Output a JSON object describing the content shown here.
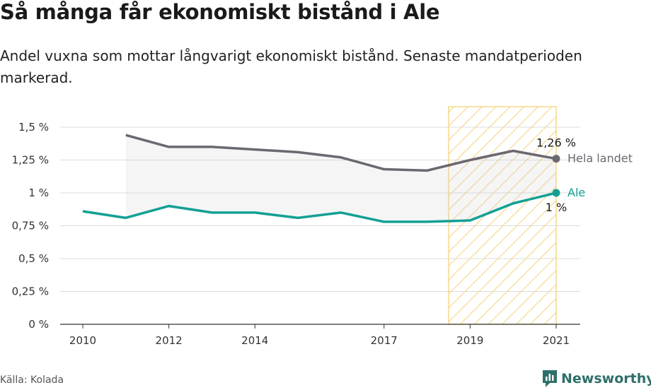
{
  "title": "Så många får ekonomiskt bistånd i Ale",
  "subtitle": "Andel vuxna som mottar långvarigt ekonomiskt bistånd. Senaste mandatperioden markerad.",
  "source": "Källa: Kolada",
  "logo": {
    "name": "Newsworthy",
    "icon": "newsworthy-logo-icon"
  },
  "colors": {
    "hela_landet": "#6b6870",
    "ale": "#13a094",
    "highlight_stroke": "#f3d98c",
    "highlight_hatch": "#f5d27a"
  },
  "chart_data": {
    "type": "line",
    "x_ticks": [
      2010,
      2012,
      2014,
      2017,
      2019,
      2021
    ],
    "y_ticks": [
      0,
      0.25,
      0.5,
      0.75,
      1,
      1.25,
      1.5
    ],
    "y_tick_labels": [
      "0 %",
      "0,25 %",
      "0,5 %",
      "0,75 %",
      "1 %",
      "1,25 %",
      "1,5 %"
    ],
    "xlim": [
      2010,
      2021
    ],
    "ylim": [
      0,
      1.5
    ],
    "highlight": {
      "from": 2018.5,
      "to": 2021
    },
    "series": [
      {
        "name": "Hela landet",
        "color": "#6b6870",
        "x": [
          2011,
          2012,
          2013,
          2014,
          2015,
          2016,
          2017,
          2018,
          2019,
          2020,
          2021
        ],
        "values": [
          1.44,
          1.35,
          1.35,
          1.33,
          1.31,
          1.27,
          1.18,
          1.17,
          1.25,
          1.32,
          1.26
        ],
        "end_label": "1,26 %"
      },
      {
        "name": "Ale",
        "color": "#13a094",
        "x": [
          2010,
          2011,
          2012,
          2013,
          2014,
          2015,
          2016,
          2017,
          2018,
          2019,
          2020,
          2021
        ],
        "values": [
          0.86,
          0.81,
          0.9,
          0.85,
          0.85,
          0.81,
          0.85,
          0.78,
          0.78,
          0.79,
          0.92,
          1.0
        ],
        "end_label": "1 %"
      }
    ]
  }
}
